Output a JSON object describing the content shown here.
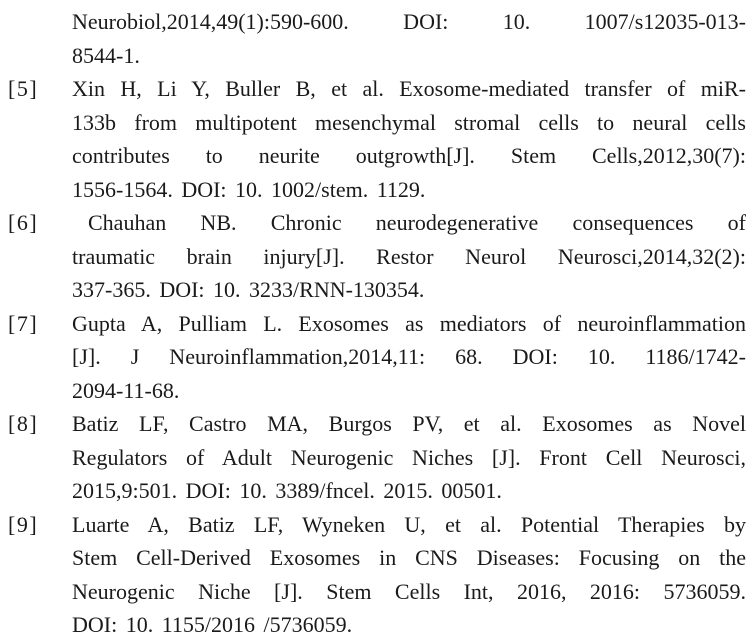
{
  "page": {
    "background_color": "#ffffff",
    "text_color": "#1a1a1a",
    "content_type_label": "journal-references-list"
  },
  "references": [
    {
      "label": "",
      "lines": [
        "Neurobiol,2014,49(1):590-600. DOI: 10. 1007/s12035-013-",
        "8544-1."
      ]
    },
    {
      "label": "[5]",
      "lines": [
        "Xin H, Li Y, Buller B, et al. Exosome-mediated transfer of miR-",
        "133b from multipotent mesenchymal stromal cells to neural cells",
        "contributes to neurite outgrowth[J]. Stem Cells,2012,30(7):",
        "1556-1564. DOI: 10. 1002/stem. 1129."
      ]
    },
    {
      "label": "[6]",
      "lines": [
        "Chauhan NB. Chronic neurodegenerative consequences of",
        "traumatic brain injury[J]. Restor Neurol Neurosci,2014,32(2):",
        "337-365. DOI: 10. 3233/RNN-130354."
      ]
    },
    {
      "label": "[7]",
      "lines": [
        "Gupta A, Pulliam L. Exosomes as mediators of neuroinflammation",
        "[J]. J Neuroinflammation,2014,11: 68. DOI: 10. 1186/1742-",
        "2094-11-68."
      ]
    },
    {
      "label": "[8]",
      "lines": [
        "Batiz LF, Castro MA, Burgos PV, et al. Exosomes as Novel",
        "Regulators of Adult Neurogenic Niches [J]. Front Cell Neurosci,",
        "2015,9:501. DOI: 10. 3389/fncel. 2015. 00501."
      ]
    },
    {
      "label": "[9]",
      "lines": [
        "Luarte A, Batiz LF, Wyneken U, et al. Potential Therapies by",
        "Stem Cell-Derived Exosomes in CNS Diseases: Focusing on the",
        "Neurogenic Niche [J]. Stem Cells Int, 2016, 2016: 5736059.",
        "DOI: 10. 1155/2016 /5736059."
      ]
    }
  ]
}
